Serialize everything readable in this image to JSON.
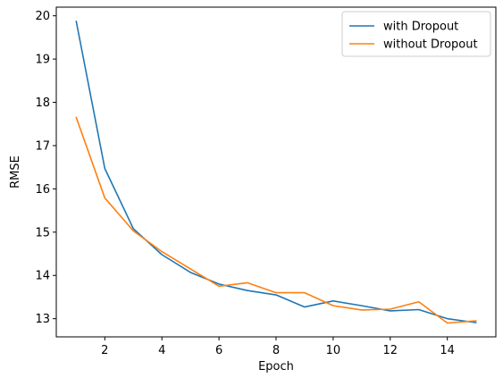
{
  "chart_data": {
    "type": "line",
    "title": "",
    "xlabel": "Epoch",
    "ylabel": "RMSE",
    "xlim": [
      0.3,
      15.7
    ],
    "ylim": [
      12.58,
      20.2
    ],
    "xticks": [
      2,
      4,
      6,
      8,
      10,
      12,
      14
    ],
    "yticks": [
      13,
      14,
      15,
      16,
      17,
      18,
      19,
      20
    ],
    "grid": false,
    "legend_position": "top-right",
    "x": [
      1,
      2,
      3,
      4,
      5,
      6,
      7,
      8,
      9,
      10,
      11,
      12,
      13,
      14,
      15
    ],
    "series": [
      {
        "name": "with Dropout",
        "color": "#1f77b4",
        "values": [
          19.87,
          16.47,
          15.08,
          14.48,
          14.07,
          13.8,
          13.65,
          13.55,
          13.27,
          13.41,
          13.3,
          13.18,
          13.21,
          13.0,
          12.91
        ]
      },
      {
        "name": "without Dropout",
        "color": "#ff7f0e",
        "values": [
          17.65,
          15.79,
          15.03,
          14.55,
          14.15,
          13.75,
          13.83,
          13.6,
          13.6,
          13.3,
          13.2,
          13.22,
          13.39,
          12.9,
          12.95
        ]
      }
    ]
  }
}
